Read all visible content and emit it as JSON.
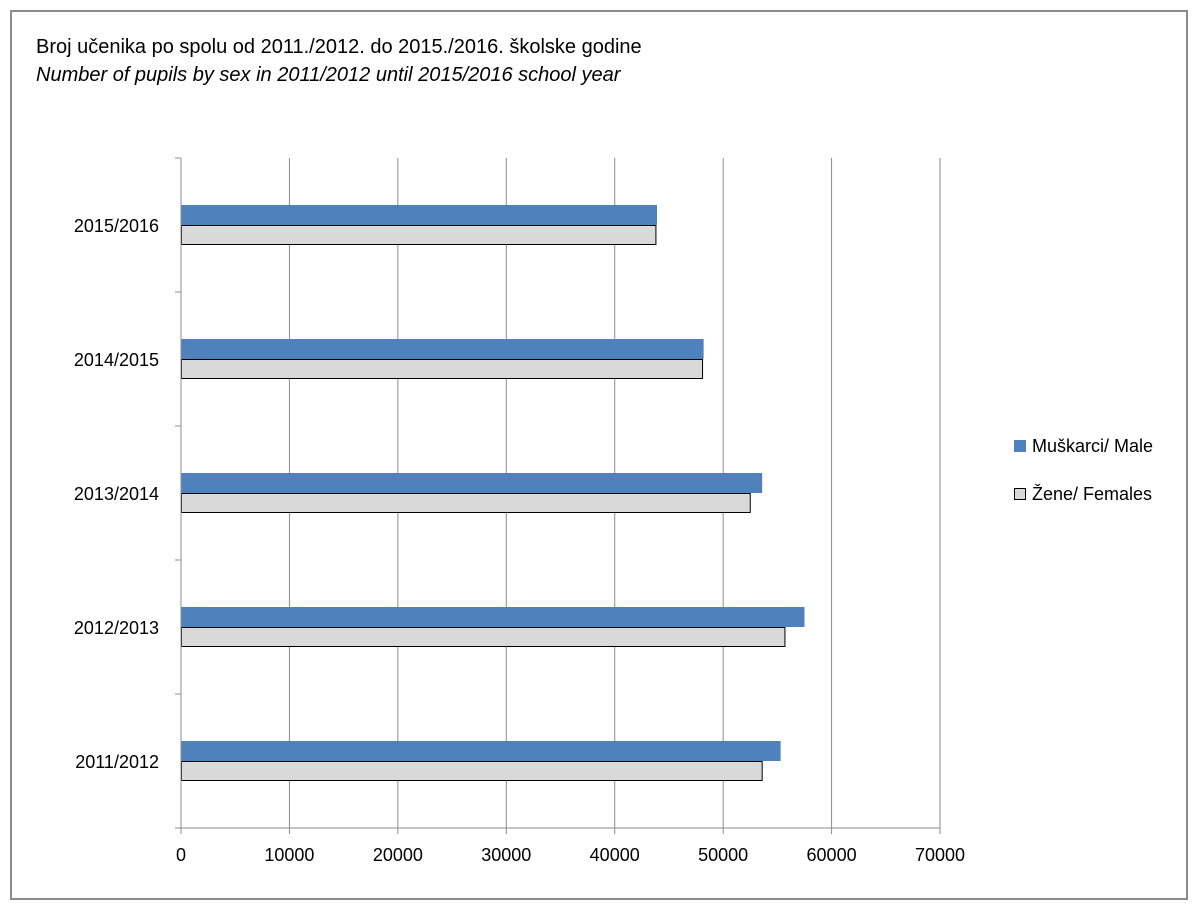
{
  "chart_data": {
    "type": "bar",
    "orientation": "horizontal",
    "title": "Broj učenika po spolu od 2011./2012. do 2015./2016. školske godine",
    "subtitle": "Number of pupils by sex in 2011/2012 until 2015/2016 school year",
    "categories": [
      "2011/2012",
      "2012/2013",
      "2013/2014",
      "2014/2015",
      "2015/2016"
    ],
    "series": [
      {
        "name": "Muškarci/ Male",
        "color": "#4f81bd",
        "values": [
          55300,
          57500,
          53600,
          48200,
          43900
        ]
      },
      {
        "name": "Žene/ Females",
        "color": "#d9d9d9",
        "values": [
          53600,
          55700,
          52500,
          48100,
          43800
        ]
      }
    ],
    "xlim": [
      0,
      70000
    ],
    "xticks": [
      "0",
      "10000",
      "20000",
      "30000",
      "40000",
      "50000",
      "60000",
      "70000"
    ],
    "grid": "vertical",
    "legend_position": "right"
  }
}
